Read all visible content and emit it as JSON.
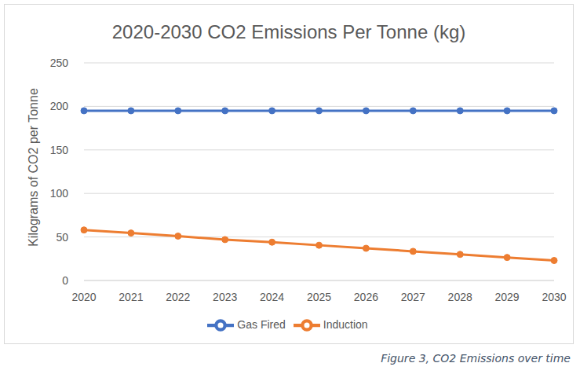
{
  "chart_data": {
    "type": "line",
    "title": "2020-2030 CO2 Emissions Per Tonne (kg)",
    "y_label": "Kilograms of CO2 per Tonne",
    "caption": "Figure 3, CO2 Emissions over time",
    "categories": [
      "2020",
      "2021",
      "2022",
      "2023",
      "2024",
      "2025",
      "2026",
      "2027",
      "2028",
      "2029",
      "2030"
    ],
    "series": [
      {
        "name": "Gas Fired",
        "color": "#4472c4",
        "marker": "circle",
        "values": [
          195,
          195,
          195,
          195,
          195,
          195,
          195,
          195,
          195,
          195,
          195
        ]
      },
      {
        "name": "Induction",
        "color": "#ed7d31",
        "marker": "circle",
        "values": [
          58,
          54.5,
          51,
          47,
          44,
          40.5,
          37,
          33.5,
          30,
          26.5,
          23
        ]
      }
    ],
    "ylim": [
      0,
      250
    ],
    "yticks": [
      0,
      50,
      100,
      150,
      200,
      250
    ],
    "grid": true,
    "legend": "bottom"
  }
}
